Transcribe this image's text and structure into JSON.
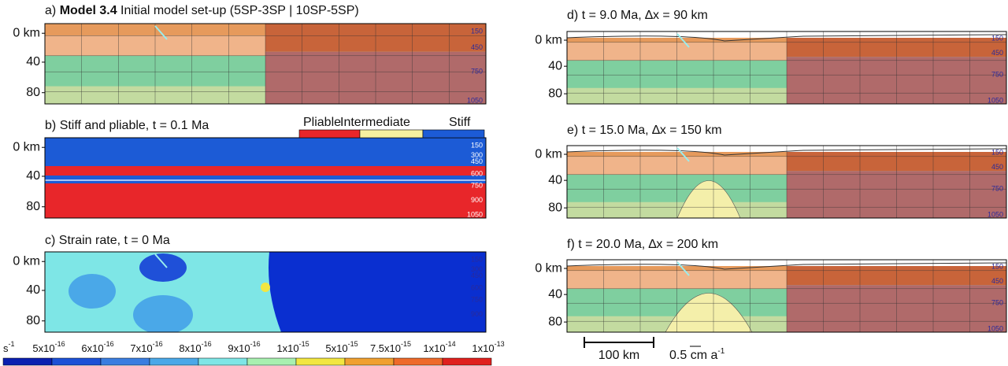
{
  "panels": [
    {
      "label": "a)",
      "bold": "Model 3.4",
      "title": "Initial model set-up  (5SP-3SP | 10SP-5SP)",
      "isotherms": [
        "150",
        "450",
        "750",
        "1050"
      ]
    },
    {
      "label": "b)",
      "title": "Stiff and pliable, t = 0.1 Ma",
      "isotherms": [
        "150",
        "300",
        "450",
        "600",
        "750",
        "900",
        "1050"
      ]
    },
    {
      "label": "c)",
      "title": "Strain rate, t = 0 Ma",
      "isotherms": [
        "150",
        "300",
        "450",
        "600",
        "750",
        "900"
      ]
    },
    {
      "label": "d)",
      "title": "t = 9.0 Ma, ∆x = 90 km",
      "isotherms": [
        "150",
        "450",
        "750",
        "1050"
      ]
    },
    {
      "label": "e)",
      "title": "t = 15.0 Ma, ∆x = 150 km",
      "isotherms": [
        "150",
        "450",
        "750",
        "1050"
      ]
    },
    {
      "label": "f)",
      "title": "t = 20.0 Ma, ∆x = 200 km",
      "isotherms": [
        "150",
        "450",
        "750",
        "1050"
      ]
    }
  ],
  "depth_ticks": [
    "0 km",
    "40",
    "80"
  ],
  "stiffness_legend": [
    "Pliable",
    "Intermediate",
    "Stiff"
  ],
  "colorbar": {
    "unit": "s",
    "unit_exp": "-1",
    "labels": [
      {
        "base": "5x10",
        "exp": "-16"
      },
      {
        "base": "6x10",
        "exp": "-16"
      },
      {
        "base": "7x10",
        "exp": "-16"
      },
      {
        "base": "8x10",
        "exp": "-16"
      },
      {
        "base": "9x10",
        "exp": "-16"
      },
      {
        "base": "1x10",
        "exp": "-15"
      },
      {
        "base": "5x10",
        "exp": "-15"
      },
      {
        "base": "7.5x10",
        "exp": "-15"
      },
      {
        "base": "1x10",
        "exp": "-14"
      },
      {
        "base": "1x10",
        "exp": "-13"
      }
    ]
  },
  "scale_bar": "100 km",
  "velocity": {
    "text": "0.5 cm a",
    "exp": "-1"
  }
}
